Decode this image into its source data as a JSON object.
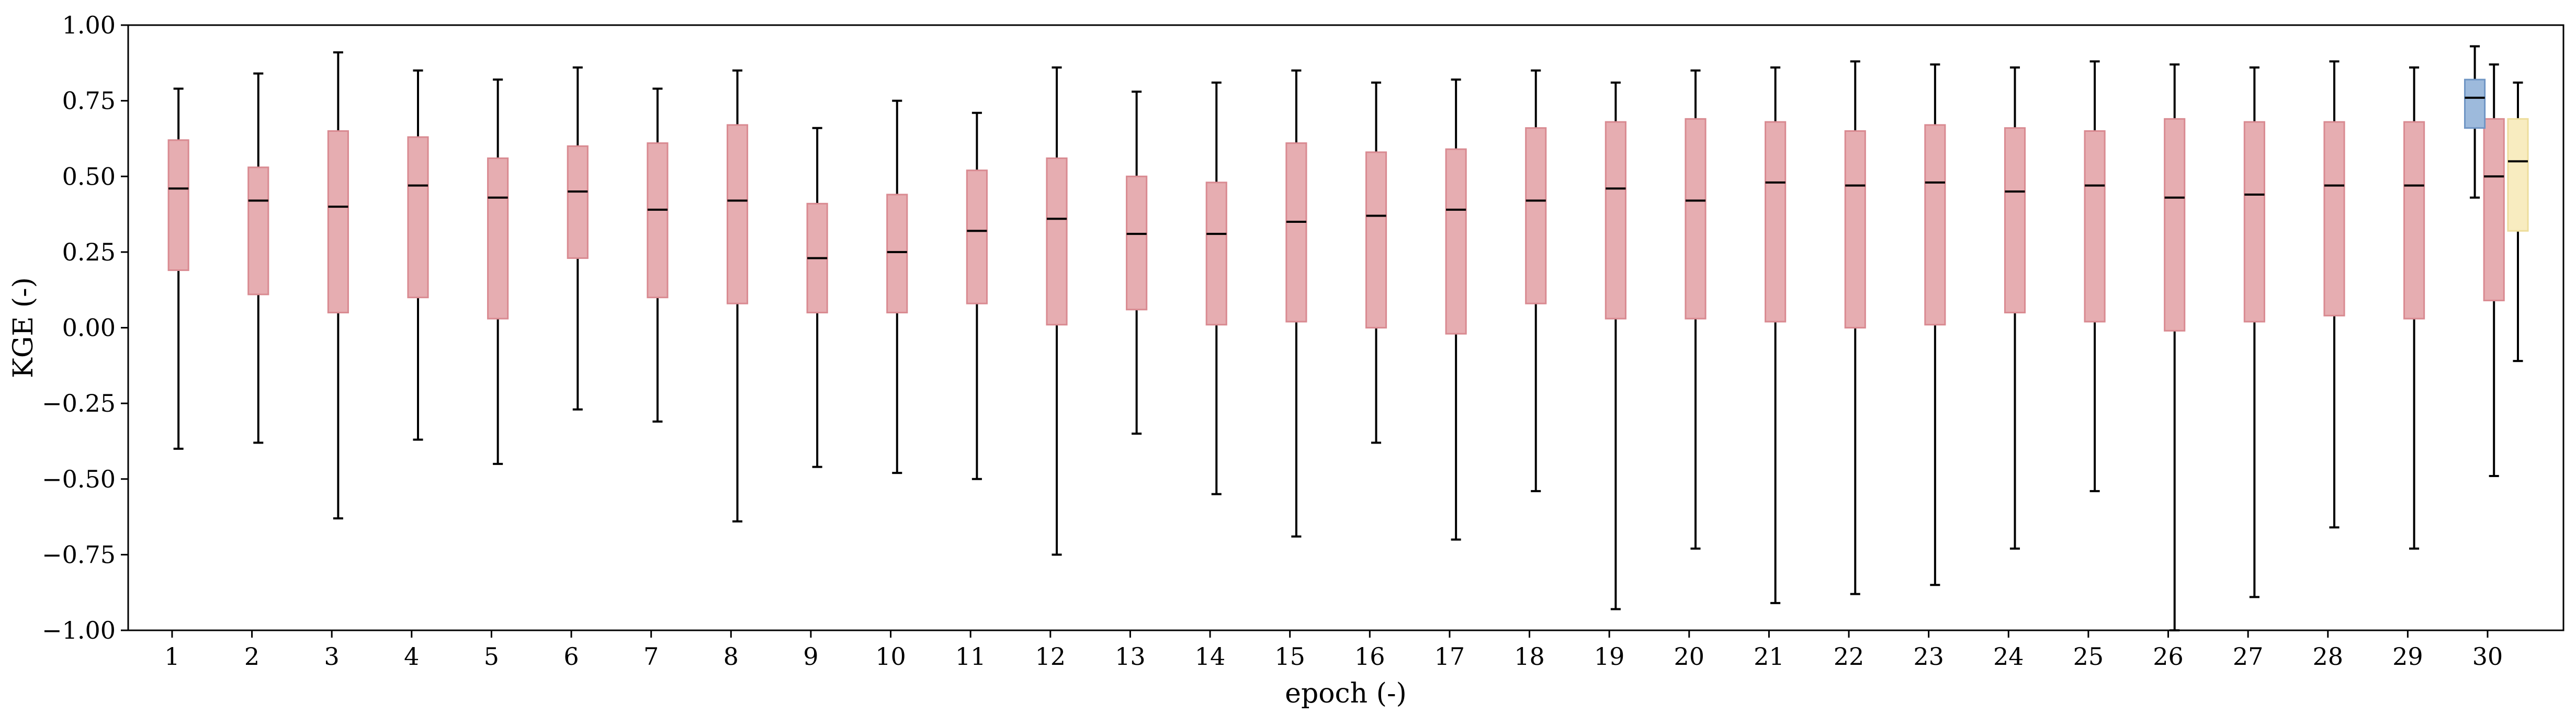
{
  "chart_data": {
    "type": "box",
    "title": "",
    "xlabel": "epoch (-)",
    "ylabel": "KGE (-)",
    "ylim": [
      -1.0,
      1.0
    ],
    "yticks": [
      -1.0,
      -0.75,
      -0.5,
      -0.25,
      0.0,
      0.25,
      0.5,
      0.75,
      1.0
    ],
    "ytick_labels": [
      "−1.00",
      "−0.75",
      "−0.50",
      "−0.25",
      "0.00",
      "0.25",
      "0.50",
      "0.75",
      "1.00"
    ],
    "categories": [
      "1",
      "2",
      "3",
      "4",
      "5",
      "6",
      "7",
      "8",
      "9",
      "10",
      "11",
      "12",
      "13",
      "14",
      "15",
      "16",
      "17",
      "18",
      "19",
      "20",
      "21",
      "22",
      "23",
      "24",
      "25",
      "26",
      "27",
      "28",
      "29",
      "30"
    ],
    "grid": false,
    "colors": {
      "red_fill": "#e6adb1",
      "red_edge": "#d98a91",
      "blue_fill": "#9dbadc",
      "blue_edge": "#6f95c4",
      "yellow_fill": "#f8ecc0",
      "yellow_edge": "#eddd9c"
    },
    "series": [
      {
        "color_key": "red",
        "positions": [
          1,
          2,
          3,
          4,
          5,
          6,
          7,
          8,
          9,
          10,
          11,
          12,
          13,
          14,
          15,
          16,
          17,
          18,
          19,
          20,
          21,
          22,
          23,
          24,
          25,
          26,
          27,
          28,
          29,
          30
        ],
        "boxes": [
          {
            "whislo": -0.4,
            "q1": 0.19,
            "med": 0.46,
            "q3": 0.62,
            "whishi": 0.79
          },
          {
            "whislo": -0.38,
            "q1": 0.11,
            "med": 0.42,
            "q3": 0.53,
            "whishi": 0.84
          },
          {
            "whislo": -0.63,
            "q1": 0.05,
            "med": 0.4,
            "q3": 0.65,
            "whishi": 0.91
          },
          {
            "whislo": -0.37,
            "q1": 0.1,
            "med": 0.47,
            "q3": 0.63,
            "whishi": 0.85
          },
          {
            "whislo": -0.45,
            "q1": 0.03,
            "med": 0.43,
            "q3": 0.56,
            "whishi": 0.82
          },
          {
            "whislo": -0.27,
            "q1": 0.23,
            "med": 0.45,
            "q3": 0.6,
            "whishi": 0.86
          },
          {
            "whislo": -0.31,
            "q1": 0.1,
            "med": 0.39,
            "q3": 0.61,
            "whishi": 0.79
          },
          {
            "whislo": -0.64,
            "q1": 0.08,
            "med": 0.42,
            "q3": 0.67,
            "whishi": 0.85
          },
          {
            "whislo": -0.46,
            "q1": 0.05,
            "med": 0.23,
            "q3": 0.41,
            "whishi": 0.66
          },
          {
            "whislo": -0.48,
            "q1": 0.05,
            "med": 0.25,
            "q3": 0.44,
            "whishi": 0.75
          },
          {
            "whislo": -0.5,
            "q1": 0.08,
            "med": 0.32,
            "q3": 0.52,
            "whishi": 0.71
          },
          {
            "whislo": -0.75,
            "q1": 0.01,
            "med": 0.36,
            "q3": 0.56,
            "whishi": 0.86
          },
          {
            "whislo": -0.35,
            "q1": 0.06,
            "med": 0.31,
            "q3": 0.5,
            "whishi": 0.78
          },
          {
            "whislo": -0.55,
            "q1": 0.01,
            "med": 0.31,
            "q3": 0.48,
            "whishi": 0.81
          },
          {
            "whislo": -0.69,
            "q1": 0.02,
            "med": 0.35,
            "q3": 0.61,
            "whishi": 0.85
          },
          {
            "whislo": -0.38,
            "q1": 0.0,
            "med": 0.37,
            "q3": 0.58,
            "whishi": 0.81
          },
          {
            "whislo": -0.7,
            "q1": -0.02,
            "med": 0.39,
            "q3": 0.59,
            "whishi": 0.82
          },
          {
            "whislo": -0.54,
            "q1": 0.08,
            "med": 0.42,
            "q3": 0.66,
            "whishi": 0.85
          },
          {
            "whislo": -0.93,
            "q1": 0.03,
            "med": 0.46,
            "q3": 0.68,
            "whishi": 0.81
          },
          {
            "whislo": -0.73,
            "q1": 0.03,
            "med": 0.42,
            "q3": 0.69,
            "whishi": 0.85
          },
          {
            "whislo": -0.91,
            "q1": 0.02,
            "med": 0.48,
            "q3": 0.68,
            "whishi": 0.86
          },
          {
            "whislo": -0.88,
            "q1": 0.0,
            "med": 0.47,
            "q3": 0.65,
            "whishi": 0.88
          },
          {
            "whislo": -0.85,
            "q1": 0.01,
            "med": 0.48,
            "q3": 0.67,
            "whishi": 0.87
          },
          {
            "whislo": -0.73,
            "q1": 0.05,
            "med": 0.45,
            "q3": 0.66,
            "whishi": 0.86
          },
          {
            "whislo": -0.54,
            "q1": 0.02,
            "med": 0.47,
            "q3": 0.65,
            "whishi": 0.88
          },
          {
            "whislo": -1.0,
            "q1": -0.01,
            "med": 0.43,
            "q3": 0.69,
            "whishi": 0.87
          },
          {
            "whislo": -0.89,
            "q1": 0.02,
            "med": 0.44,
            "q3": 0.68,
            "whishi": 0.86
          },
          {
            "whislo": -0.66,
            "q1": 0.04,
            "med": 0.47,
            "q3": 0.68,
            "whishi": 0.88
          },
          {
            "whislo": -0.73,
            "q1": 0.03,
            "med": 0.47,
            "q3": 0.68,
            "whishi": 0.86
          },
          {
            "whislo": -0.49,
            "q1": 0.09,
            "med": 0.5,
            "q3": 0.69,
            "whishi": 0.87
          }
        ]
      },
      {
        "color_key": "blue",
        "positions": [
          30
        ],
        "boxes": [
          {
            "whislo": 0.43,
            "q1": 0.66,
            "med": 0.76,
            "q3": 0.82,
            "whishi": 0.93
          }
        ]
      },
      {
        "color_key": "yellow",
        "positions": [
          30
        ],
        "boxes": [
          {
            "whislo": -0.11,
            "q1": 0.32,
            "med": 0.55,
            "q3": 0.69,
            "whishi": 0.81
          }
        ]
      }
    ]
  }
}
